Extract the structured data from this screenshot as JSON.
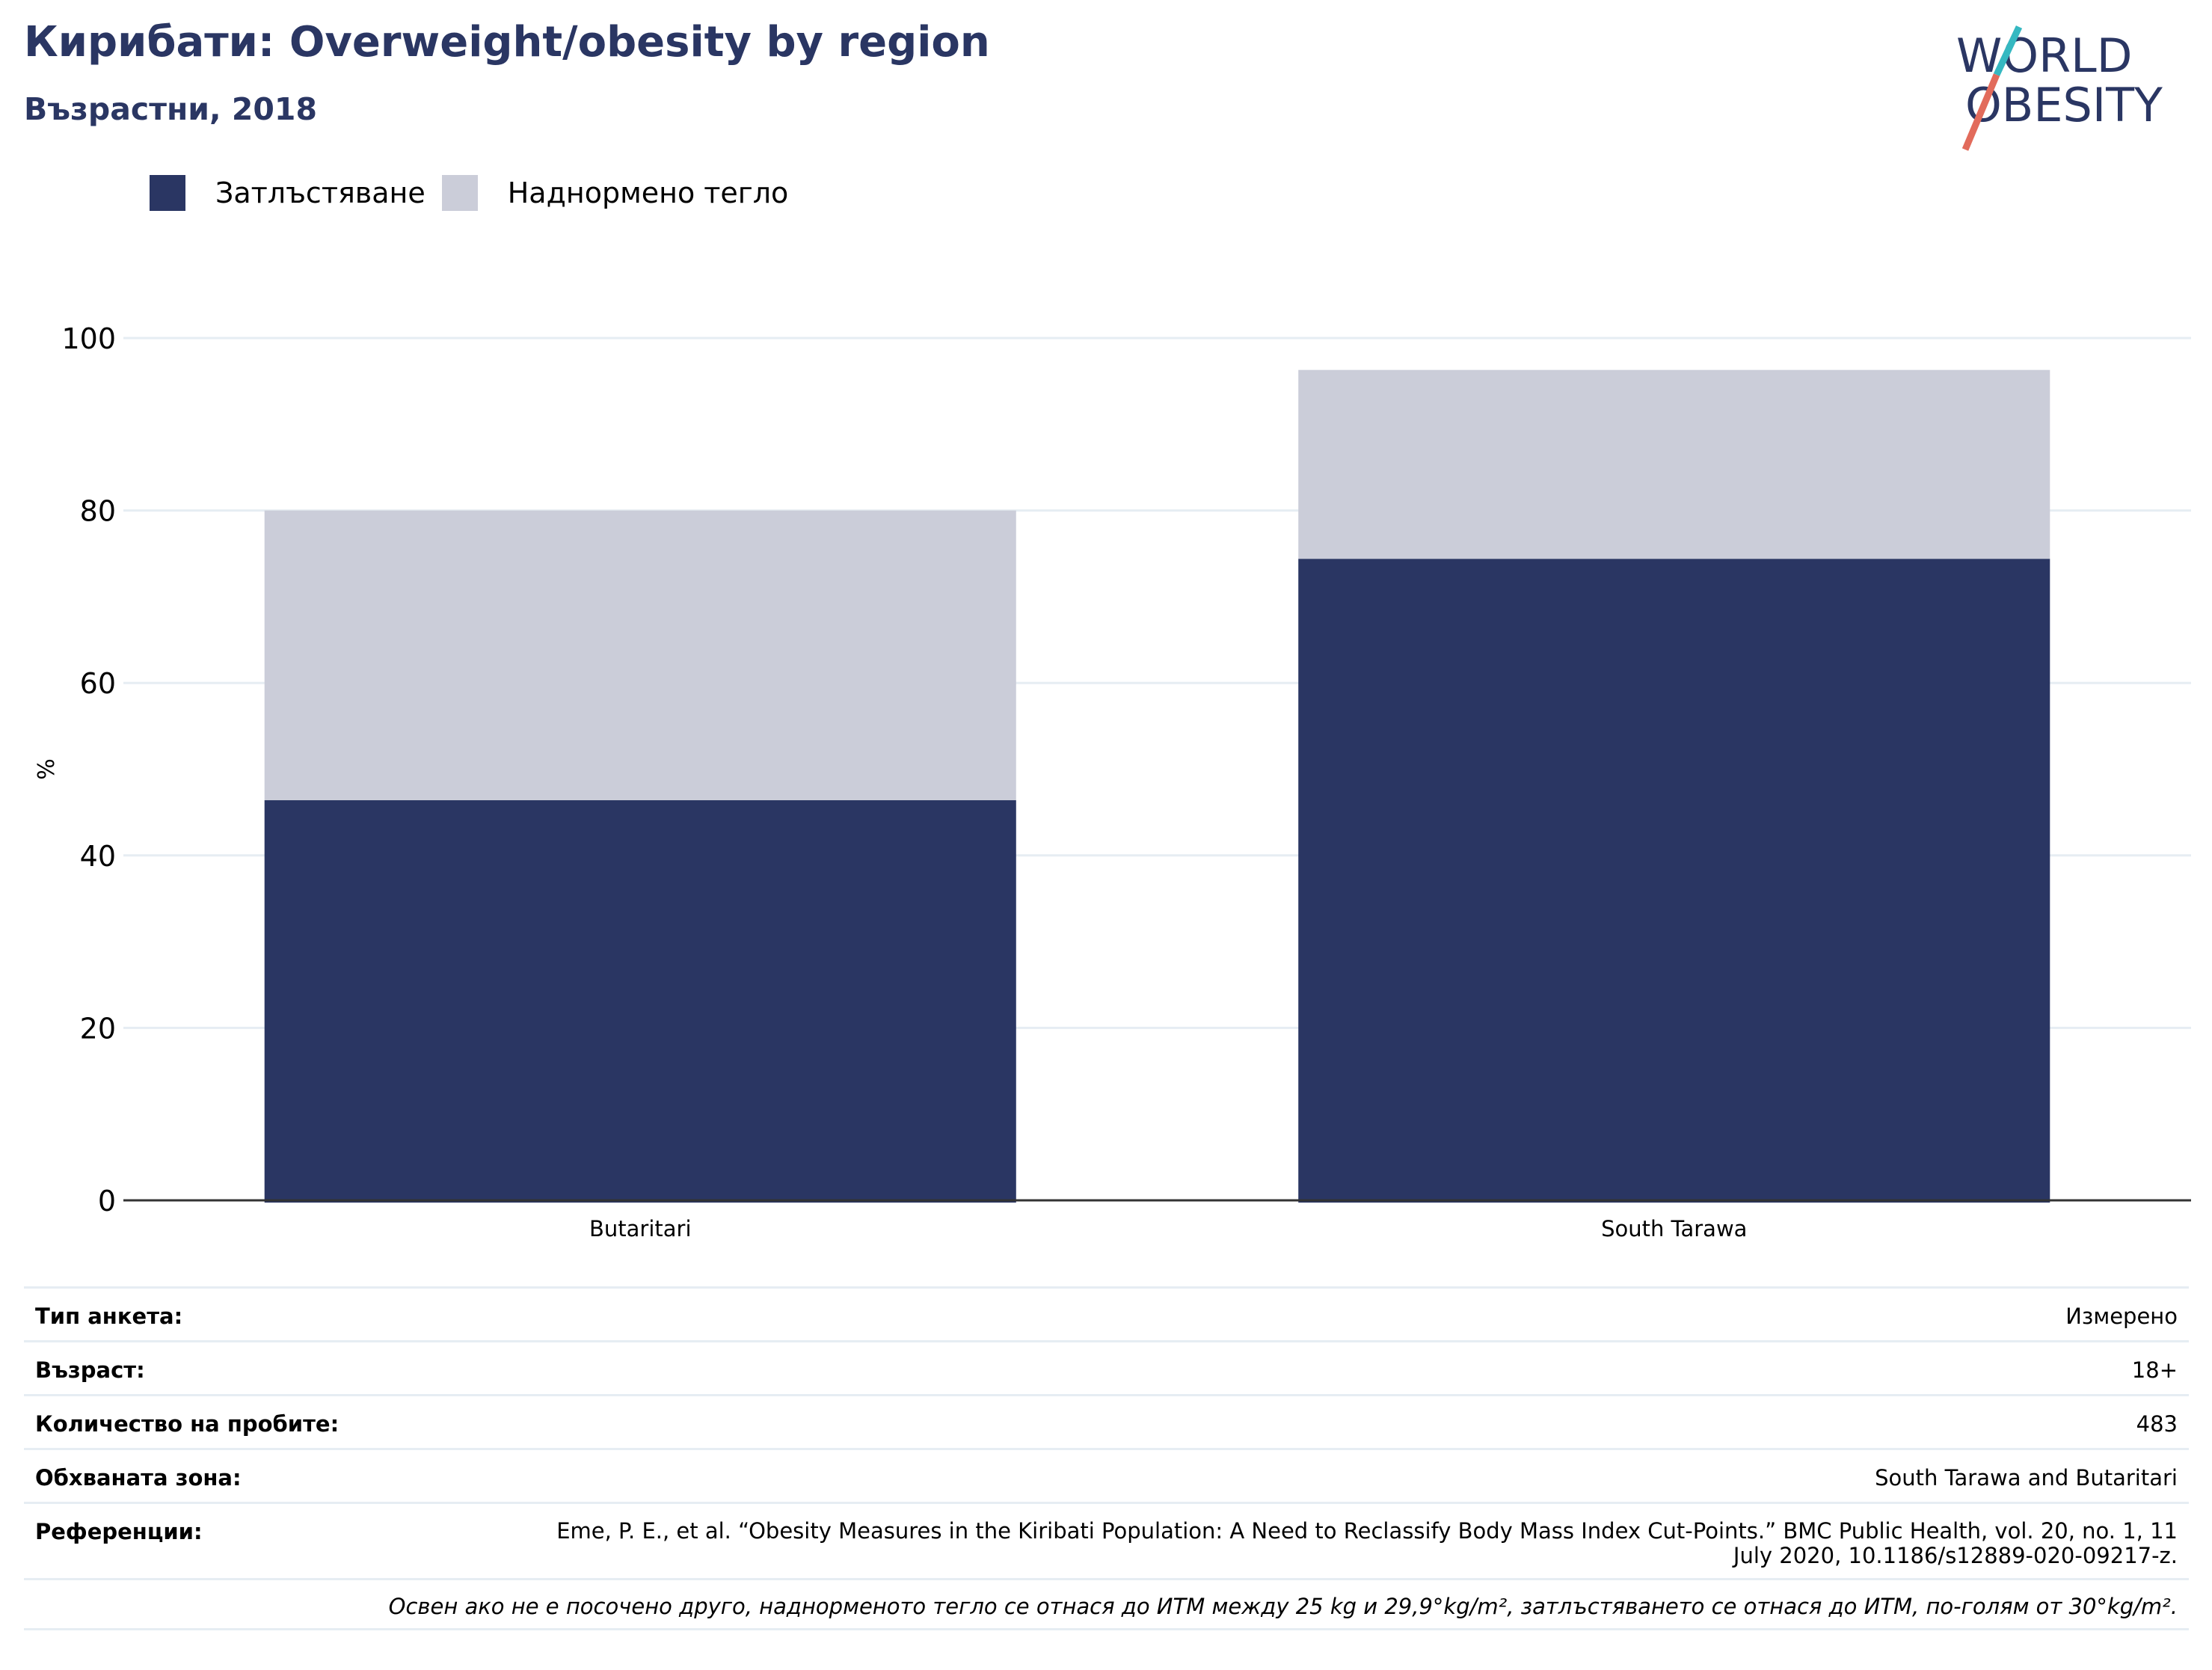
{
  "header": {
    "title": "Кирибати: Overweight/obesity by region",
    "subtitle": "Възрастни, 2018"
  },
  "logo": {
    "line1": "WORLD",
    "line2": "OBESITY",
    "colors": {
      "text": "#2a3663",
      "slash_top": "#35b8c1",
      "slash_bottom": "#e26b5b"
    }
  },
  "colors": {
    "obesity": "#2a3663",
    "overweight": "#cbcdd9",
    "grid": "#e6edf3",
    "axis": "#333333"
  },
  "legend": [
    {
      "label": "Затлъстяване",
      "color": "#2a3663"
    },
    {
      "label": "Наднормено тегло",
      "color": "#cbcdd9"
    }
  ],
  "chart_data": {
    "type": "bar",
    "stacked": true,
    "categories": [
      "Butaritari",
      "South Tarawa"
    ],
    "series": [
      {
        "name": "Затлъстяване",
        "values": [
          46.4,
          74.4
        ],
        "color": "#2a3663"
      },
      {
        "name": "Наднормено тегло",
        "values": [
          33.6,
          21.9
        ],
        "color": "#cbcdd9"
      }
    ],
    "ylabel": "%",
    "xlabel": "",
    "ylim": [
      0,
      100
    ],
    "yticks": [
      0,
      20,
      40,
      60,
      80,
      100
    ],
    "grid": true,
    "legend_position": "top-left"
  },
  "meta": {
    "survey_type_label": "Тип анкета:",
    "survey_type_value": "Измерено",
    "age_label": "Възраст:",
    "age_value": "18+",
    "sample_label": "Количество на пробите:",
    "sample_value": "483",
    "area_label": "Обхваната зона:",
    "area_value": "South Tarawa and Butaritari",
    "refs_label": "Референции:",
    "refs_value": "Eme, P. E., et al. “Obesity Measures in the Kiribati Population: A Need to Reclassify Body Mass Index Cut-Points.” BMC Public Health, vol. 20, no. 1, 11 July 2020, 10.1186/s12889-020-09217-z.",
    "note": "Освен ако не е посочено друго, наднорменото тегло се отнася до ИТМ между 25 kg и 29,9°kg/m², затлъстяването се отнася до ИТМ, по-голям от 30°kg/m²."
  }
}
